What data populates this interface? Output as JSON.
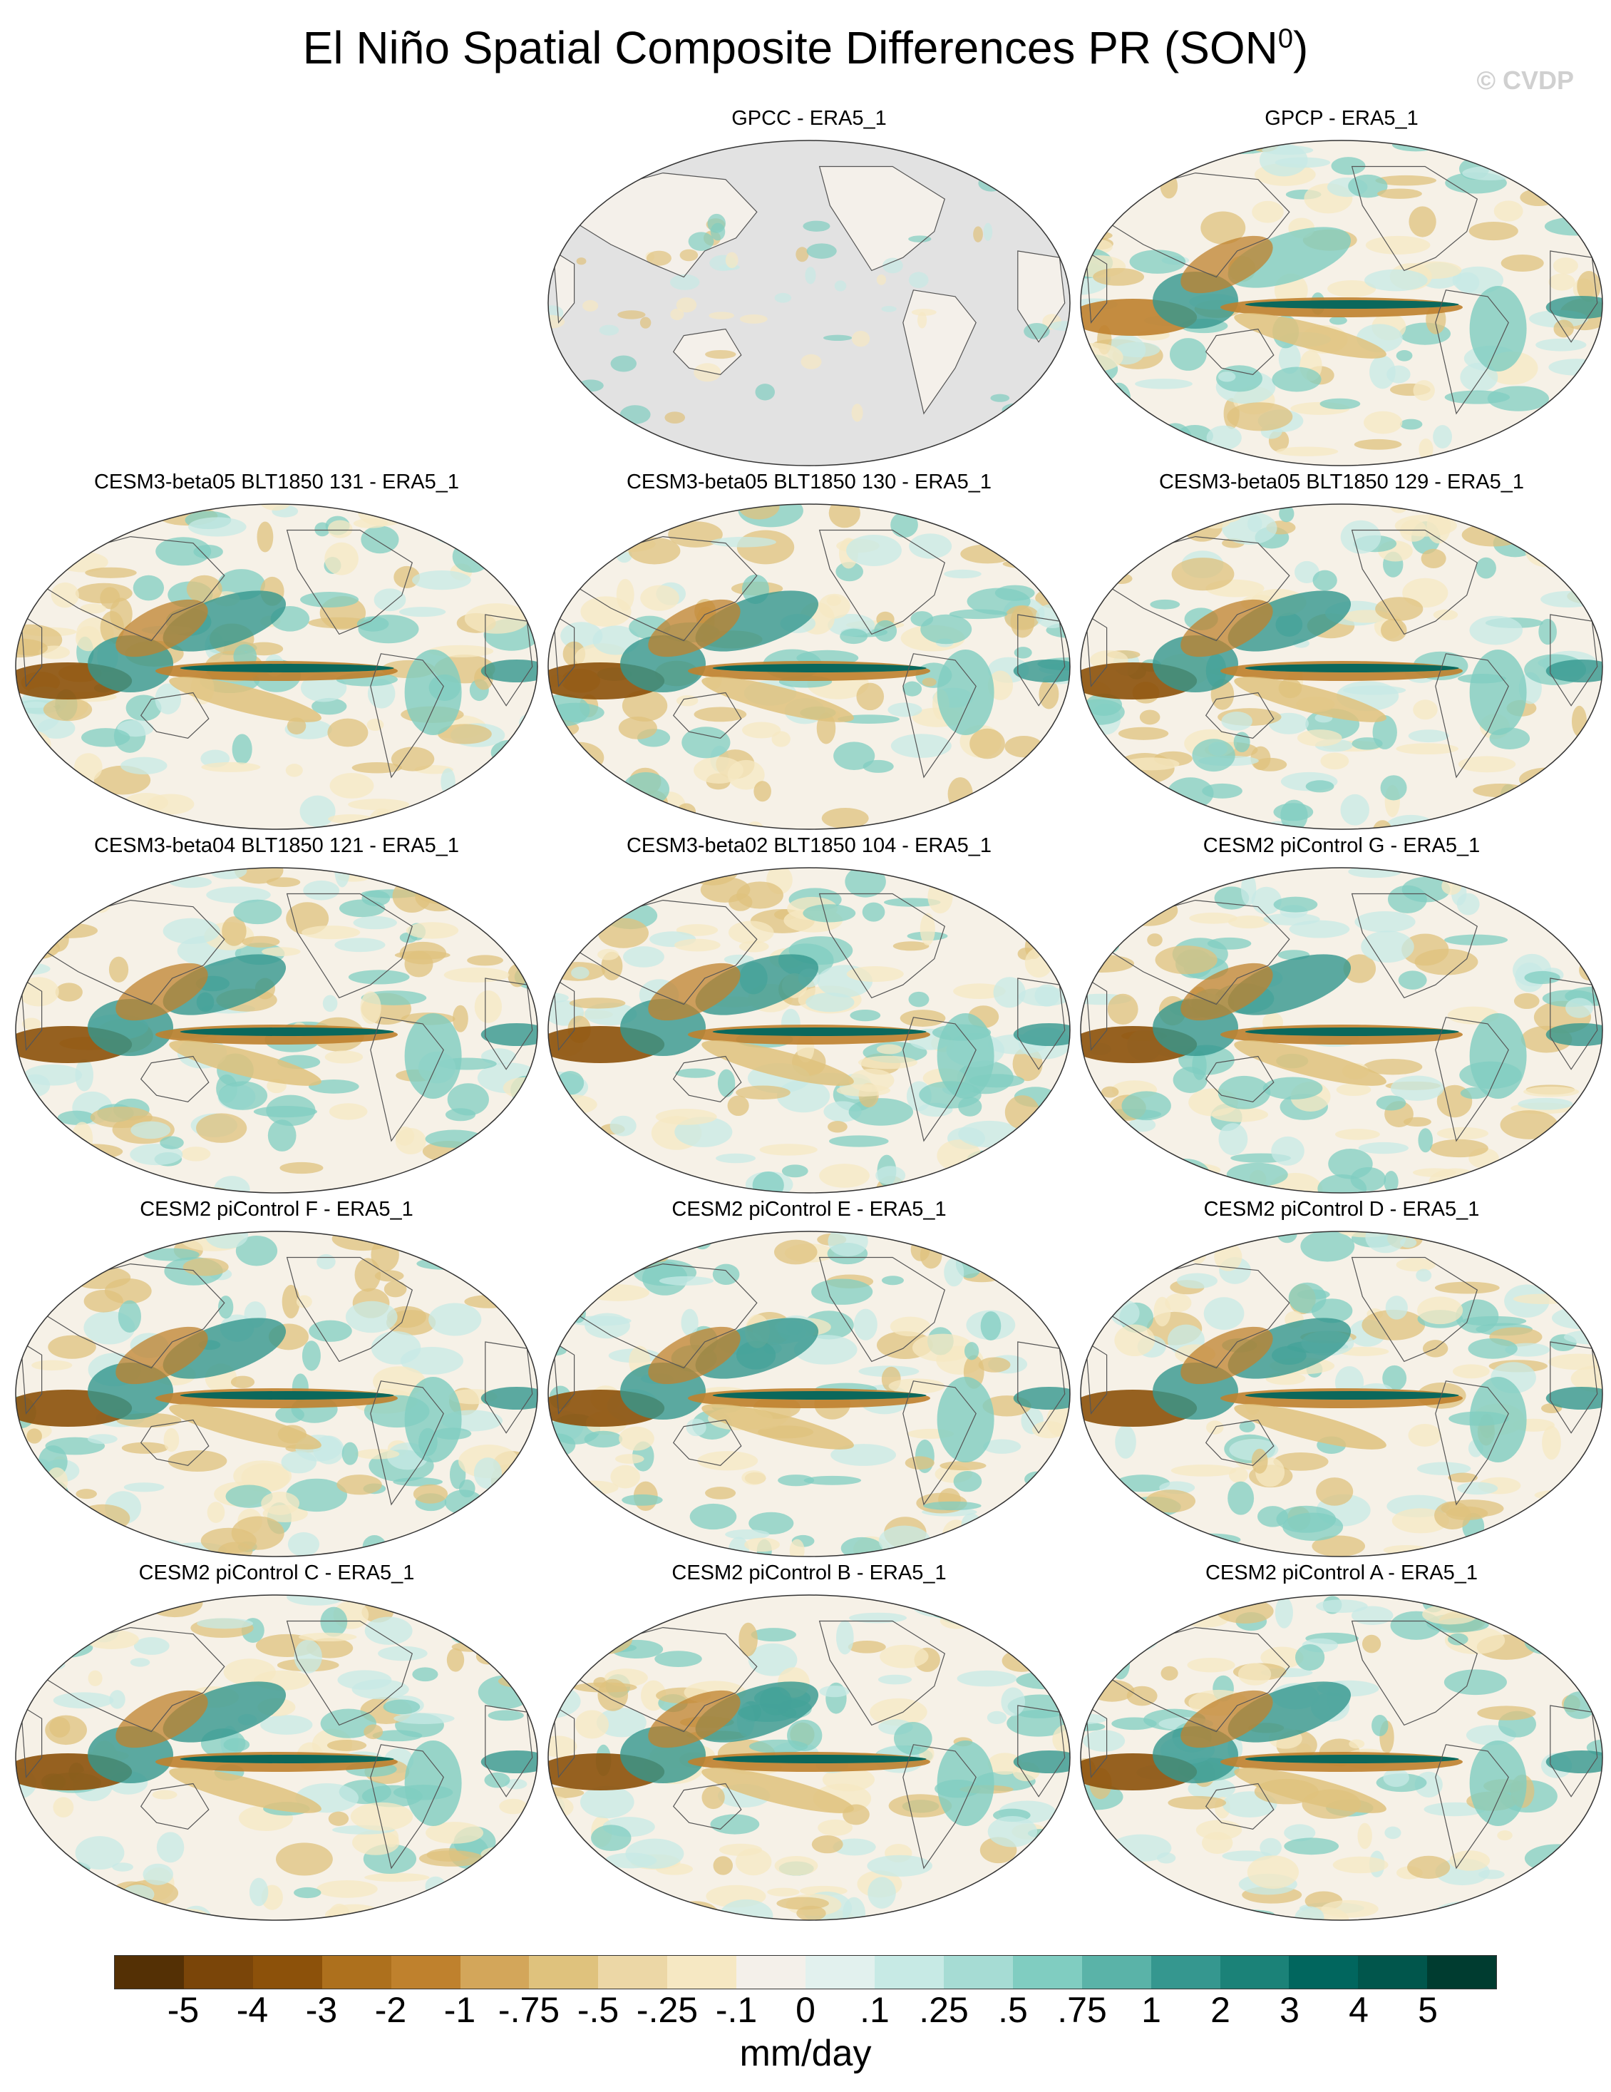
{
  "figure": {
    "title": "El Niño Spatial Composite Differences PR (SON",
    "title_sup": "0",
    "title_close": ")",
    "watermark": "© CVDP"
  },
  "panels": [
    {
      "label": "GPCC - ERA5_1",
      "style": "gpcc"
    },
    {
      "label": "GPCP - ERA5_1",
      "style": "gpcp"
    },
    {
      "label": "CESM3-beta05 BLT1850 131 - ERA5_1",
      "style": "model"
    },
    {
      "label": "CESM3-beta05 BLT1850 130 - ERA5_1",
      "style": "model"
    },
    {
      "label": "CESM3-beta05 BLT1850 129 - ERA5_1",
      "style": "model"
    },
    {
      "label": "CESM3-beta04 BLT1850 121 - ERA5_1",
      "style": "model"
    },
    {
      "label": "CESM3-beta02 BLT1850 104 - ERA5_1",
      "style": "model"
    },
    {
      "label": "CESM2 piControl G - ERA5_1",
      "style": "model"
    },
    {
      "label": "CESM2 piControl F - ERA5_1",
      "style": "model"
    },
    {
      "label": "CESM2 piControl E - ERA5_1",
      "style": "model"
    },
    {
      "label": "CESM2 piControl D - ERA5_1",
      "style": "model"
    },
    {
      "label": "CESM2 piControl C - ERA5_1",
      "style": "model"
    },
    {
      "label": "CESM2 piControl B - ERA5_1",
      "style": "model"
    },
    {
      "label": "CESM2 piControl A - ERA5_1",
      "style": "model"
    }
  ],
  "colorbar": {
    "colors": [
      "#543005",
      "#7a4509",
      "#8c510a",
      "#ad701d",
      "#bf812d",
      "#d3a65a",
      "#dfc27d",
      "#ecd7a6",
      "#f6e8c3",
      "#f4f0ea",
      "#e2f1ee",
      "#c7eae5",
      "#a6dcd4",
      "#80cdc1",
      "#5ab3a8",
      "#35978f",
      "#1b8278",
      "#01665e",
      "#01564c",
      "#003c30"
    ],
    "tick_labels": [
      "-5",
      "-4",
      "-3",
      "-2",
      "-1",
      "-.75",
      "-.5",
      "-.25",
      "-.1",
      "0",
      ".1",
      ".25",
      ".5",
      ".75",
      "1",
      "2",
      "3",
      "4",
      "5"
    ],
    "units": "mm/day"
  }
}
